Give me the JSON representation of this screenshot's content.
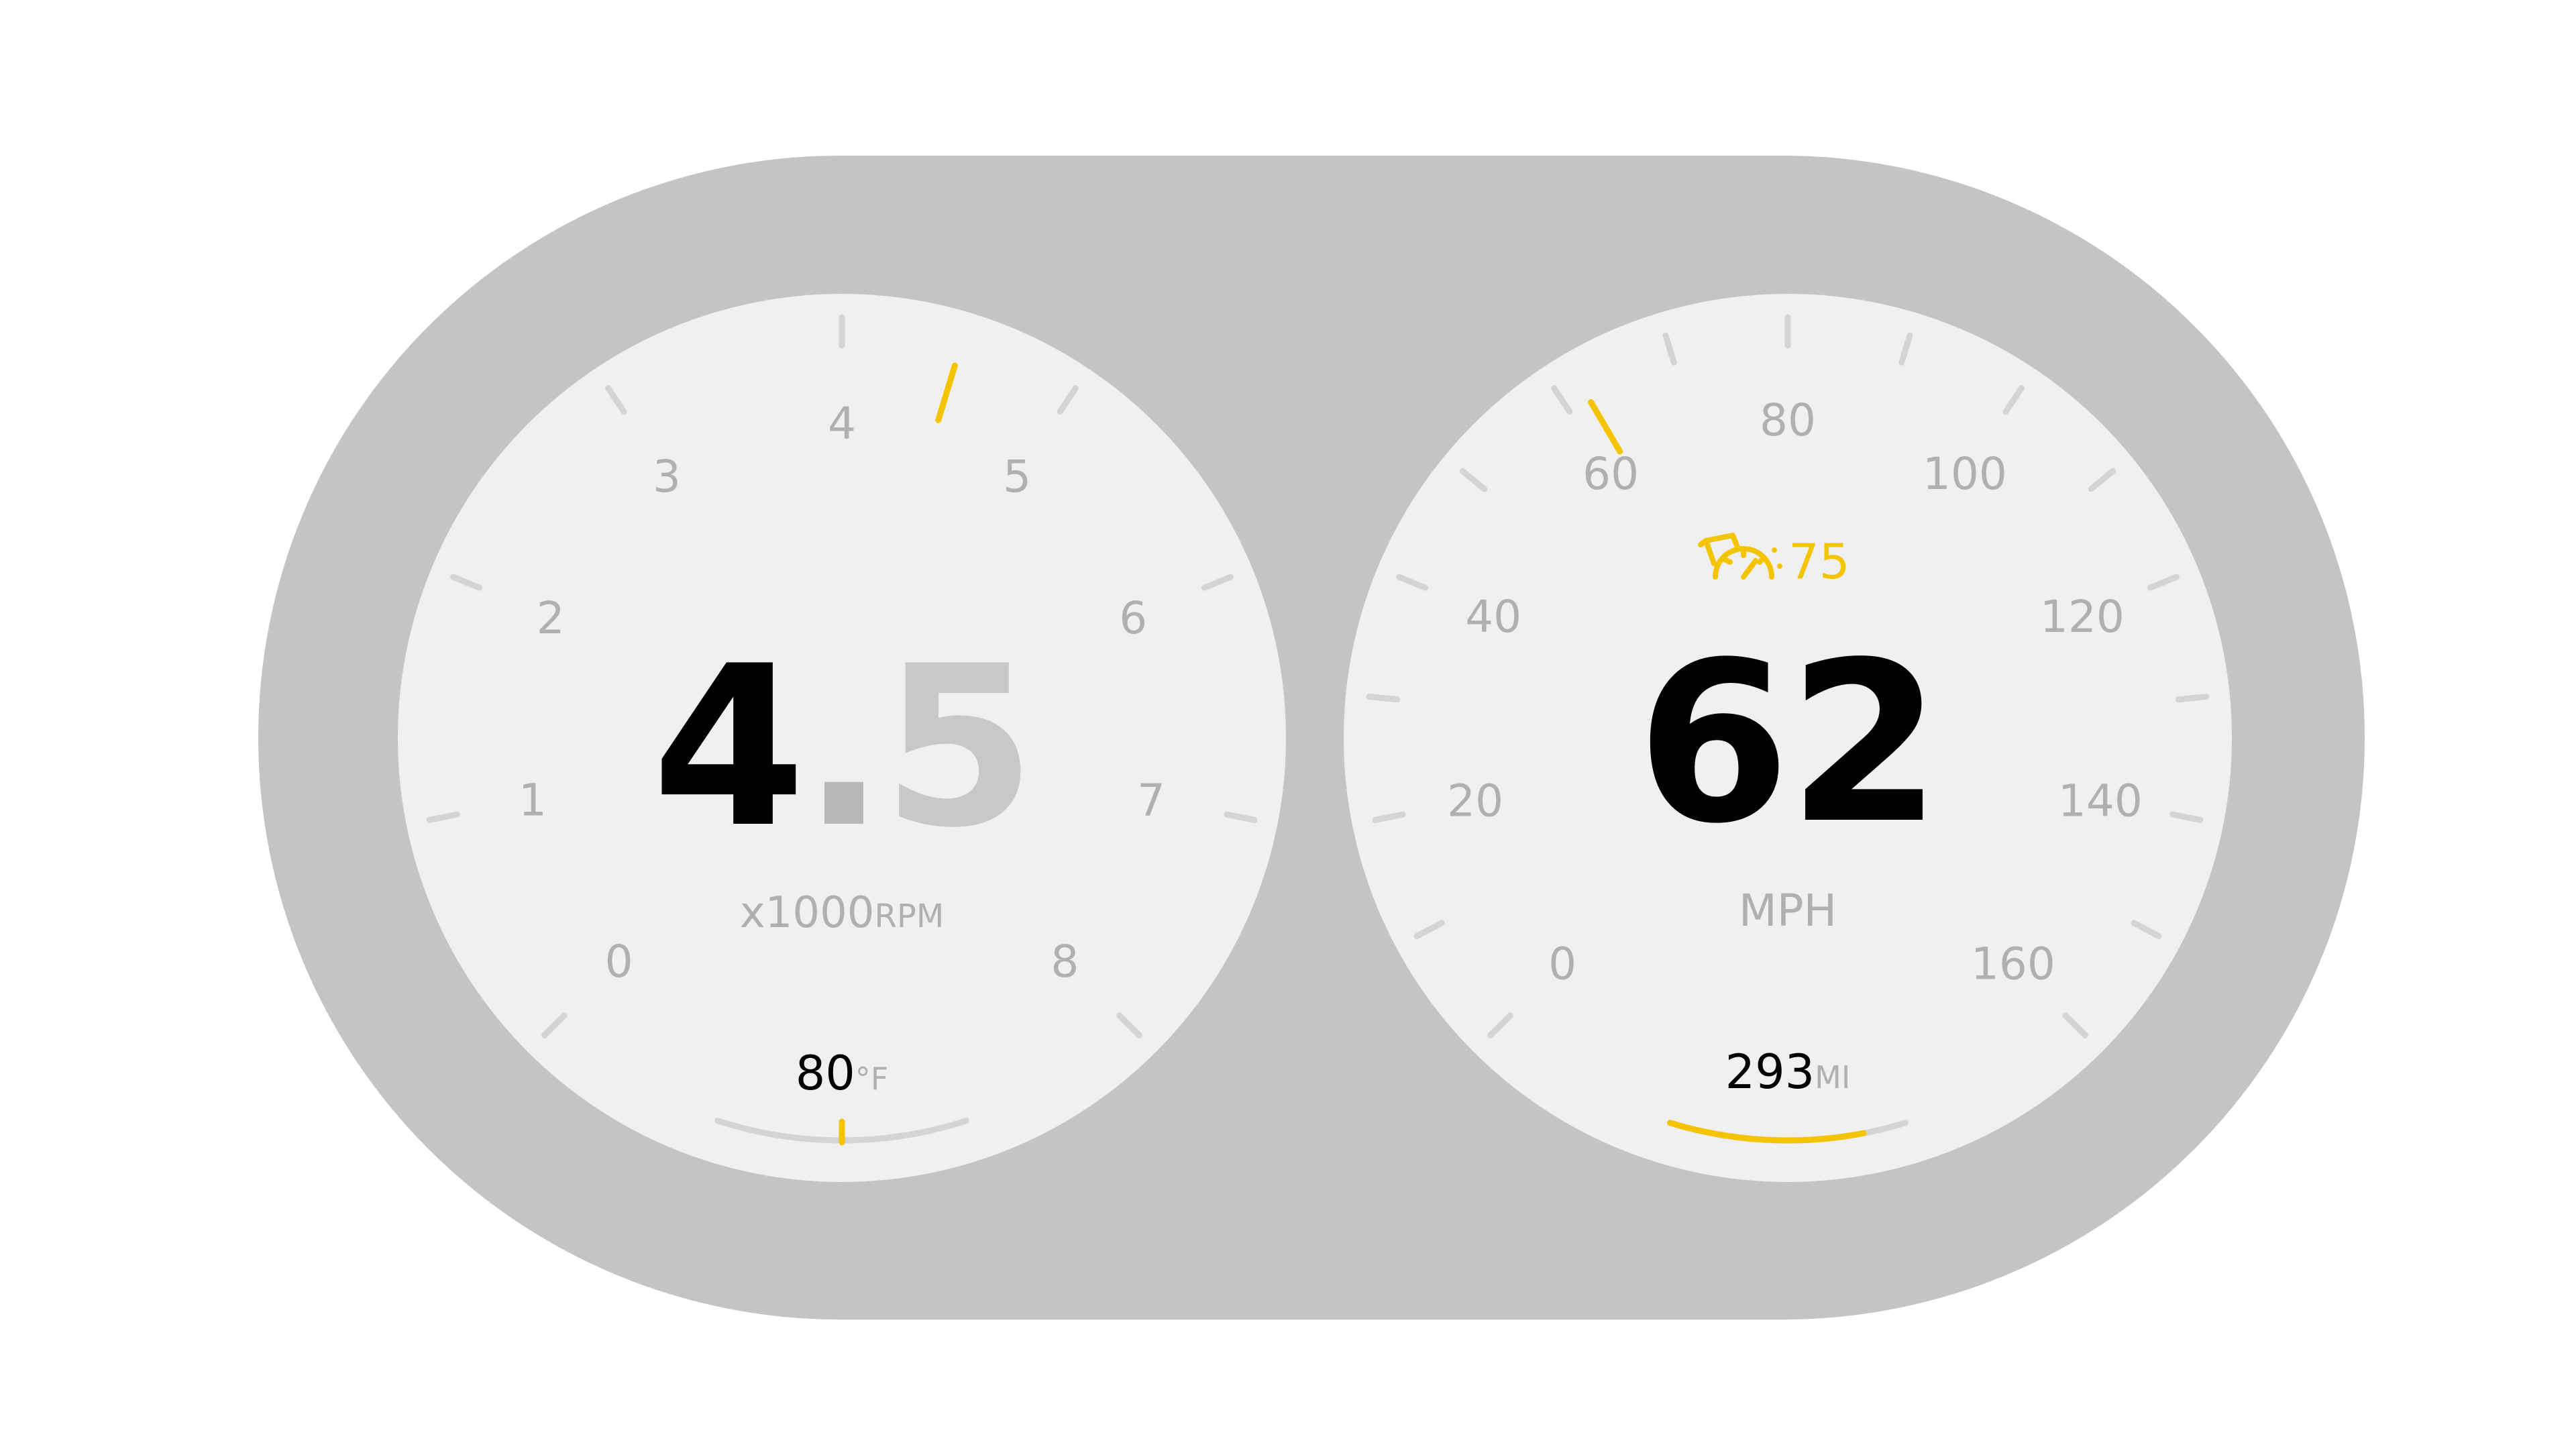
{
  "colors": {
    "background": "#ffffff",
    "bezel": "#c4c4c4",
    "dial_face": "#f0f0f0",
    "tick_inactive": "#d4d4d4",
    "label_muted": "#b0b0b0",
    "value_primary": "#000000",
    "accent": "#f5c400"
  },
  "tachometer": {
    "scale_labels": [
      "0",
      "1",
      "2",
      "3",
      "4",
      "5",
      "6",
      "7",
      "8"
    ],
    "min": 0,
    "max": 8,
    "current_value": 4.5,
    "value_whole": "4",
    "value_decimal_point": ".",
    "value_fraction": "5",
    "unit_multiplier": "x1000",
    "unit": "RPM",
    "temperature_value": "80",
    "temperature_unit": "°F",
    "temperature_level": 0.5
  },
  "speedometer": {
    "scale_labels": [
      "0",
      "20",
      "40",
      "60",
      "80",
      "100",
      "120",
      "140",
      "160"
    ],
    "min": 0,
    "max": 160,
    "current_value": 62,
    "speed_value": "62",
    "unit": "MPH",
    "speed_limit_icon": "speed-limit-gauge-icon",
    "speed_limit": "75",
    "range_value": "293",
    "range_unit": "MI",
    "range_level": 0.82
  }
}
